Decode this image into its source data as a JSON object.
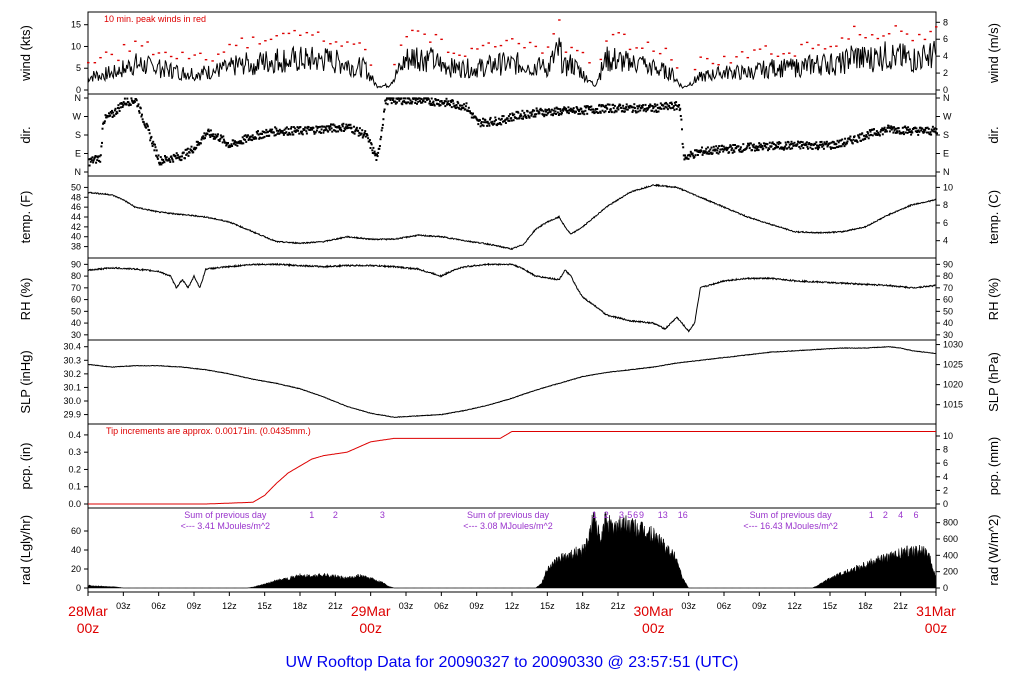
{
  "title": "UW Rooftop Data for 20090327  to  20090330 @ 23:57:51  (UTC)",
  "colors": {
    "axis": "#000000",
    "peak": "#dd0000",
    "precip": "#dd0000",
    "annot": "#9933cc",
    "date": "#dd0000",
    "title": "#0000ee"
  },
  "chart_data": {
    "type": "line",
    "x_unit": "hours since 28Mar 00z",
    "x_range": [
      0,
      72
    ],
    "x_ticks": [
      {
        "h": 0,
        "label": "28Mar",
        "sub": "00z",
        "major": true
      },
      {
        "h": 3,
        "label": "03z"
      },
      {
        "h": 6,
        "label": "06z"
      },
      {
        "h": 9,
        "label": "09z"
      },
      {
        "h": 12,
        "label": "12z"
      },
      {
        "h": 15,
        "label": "15z"
      },
      {
        "h": 18,
        "label": "18z"
      },
      {
        "h": 21,
        "label": "21z"
      },
      {
        "h": 24,
        "label": "29Mar",
        "sub": "00z",
        "major": true
      },
      {
        "h": 27,
        "label": "03z"
      },
      {
        "h": 30,
        "label": "06z"
      },
      {
        "h": 33,
        "label": "09z"
      },
      {
        "h": 36,
        "label": "12z"
      },
      {
        "h": 39,
        "label": "15z"
      },
      {
        "h": 42,
        "label": "18z"
      },
      {
        "h": 45,
        "label": "21z"
      },
      {
        "h": 48,
        "label": "30Mar",
        "sub": "00z",
        "major": true
      },
      {
        "h": 51,
        "label": "03z"
      },
      {
        "h": 54,
        "label": "06z"
      },
      {
        "h": 57,
        "label": "09z"
      },
      {
        "h": 60,
        "label": "12z"
      },
      {
        "h": 63,
        "label": "15z"
      },
      {
        "h": 66,
        "label": "18z"
      },
      {
        "h": 69,
        "label": "21z"
      },
      {
        "h": 72,
        "label": "31Mar",
        "sub": "00z",
        "major": true
      }
    ],
    "panels": [
      {
        "id": "wind",
        "kind": "wind",
        "ylabel": "wind (kts)",
        "ylabel_right": "wind (m/s)",
        "ylim": [
          0,
          17
        ],
        "left_ticks": [
          0,
          5,
          10,
          15
        ],
        "right_ticks": [
          0,
          2,
          4,
          6,
          8
        ],
        "right_factor": 0.5144,
        "annotation": "10 min. peak winds in red",
        "x": [
          0,
          2,
          2.5,
          3,
          4,
          6,
          8,
          10,
          12,
          13,
          14,
          16,
          18,
          20,
          22,
          23.5,
          24.5,
          25.5,
          27,
          28,
          29,
          31,
          33,
          35,
          37,
          39,
          40,
          40.5,
          41,
          42,
          43,
          44,
          45,
          46,
          47,
          48,
          49.5,
          50.5,
          52,
          54,
          56,
          58,
          60,
          62,
          63,
          64,
          65,
          66,
          68,
          70,
          72
        ],
        "y": [
          3,
          4,
          4,
          5,
          6,
          5,
          4,
          4,
          5,
          6,
          6,
          7,
          7,
          7,
          6,
          5,
          1,
          1,
          7,
          8,
          7,
          5,
          5,
          6,
          6,
          5,
          9,
          5,
          6,
          4,
          1,
          7,
          7,
          6,
          6,
          5,
          4,
          0.5,
          3,
          4,
          4,
          5,
          5,
          6,
          6,
          6,
          8,
          7,
          8,
          7,
          8
        ]
      },
      {
        "id": "dir",
        "kind": "dir",
        "ylabel": "dir.",
        "ylabel_right": "dir.",
        "ylim": [
          0,
          360
        ],
        "tick_labels": [
          {
            "v": 0,
            "t": "N"
          },
          {
            "v": 90,
            "t": "E"
          },
          {
            "v": 180,
            "t": "S"
          },
          {
            "v": 270,
            "t": "W"
          },
          {
            "v": 360,
            "t": "N"
          }
        ],
        "x": [
          0,
          1,
          1.2,
          2,
          3,
          4,
          6,
          8,
          9,
          10,
          11,
          12,
          14,
          16,
          18,
          20,
          22,
          23.5,
          24.5,
          25.2,
          25.8,
          26,
          28,
          30,
          31,
          32,
          33,
          35,
          36,
          38,
          40,
          42,
          44,
          46,
          48,
          49.5,
          50.2,
          50.5,
          52,
          54,
          56,
          58,
          60,
          62,
          63,
          64,
          66,
          68,
          70,
          72
        ],
        "y": [
          50,
          70,
          250,
          280,
          340,
          350,
          55,
          80,
          120,
          190,
          170,
          130,
          175,
          200,
          200,
          210,
          220,
          180,
          60,
          350,
          350,
          350,
          350,
          340,
          330,
          320,
          240,
          250,
          270,
          290,
          295,
          300,
          310,
          310,
          310,
          320,
          320,
          70,
          100,
          110,
          120,
          125,
          130,
          130,
          130,
          140,
          180,
          210,
          200,
          200
        ]
      },
      {
        "id": "temp",
        "kind": "line",
        "ylabel": "temp. (F)",
        "ylabel_right": "temp. (C)",
        "ylim": [
          36.5,
          51.5
        ],
        "left_ticks": [
          38,
          40,
          42,
          44,
          46,
          48,
          50
        ],
        "right_ticks": [
          4,
          6,
          8,
          10
        ],
        "right_conv": "f_to_c",
        "x": [
          0,
          2,
          3,
          4,
          6,
          8,
          10,
          12,
          14,
          16,
          18,
          20,
          22,
          24,
          26,
          28,
          30,
          32,
          34,
          36,
          37,
          38,
          39,
          40,
          40.5,
          41,
          42,
          44,
          46,
          48,
          50,
          52,
          54,
          56,
          58,
          60,
          62,
          64,
          66,
          68,
          70,
          72
        ],
        "y": [
          49,
          48.5,
          47.5,
          46,
          45,
          44.5,
          44,
          43,
          41,
          39,
          38.7,
          39,
          40,
          39.5,
          39.5,
          40.3,
          40,
          39.2,
          38.5,
          37.5,
          38.5,
          41.5,
          43,
          44,
          42,
          40.5,
          42,
          46,
          49,
          50.5,
          50,
          48,
          46,
          44,
          42.5,
          41,
          40.8,
          41,
          42,
          44.5,
          46.5,
          47.5
        ]
      },
      {
        "id": "rh",
        "kind": "line",
        "ylabel": "RH (%)",
        "ylabel_right": "RH (%)",
        "ylim": [
          29,
          92
        ],
        "left_ticks": [
          30,
          40,
          50,
          60,
          70,
          80,
          90
        ],
        "right_ticks": [
          30,
          40,
          50,
          60,
          70,
          80,
          90
        ],
        "x": [
          0,
          2,
          4,
          6,
          7,
          7.5,
          8,
          8.5,
          9,
          9.5,
          10,
          12,
          14,
          16,
          18,
          20,
          22,
          24,
          26,
          28,
          30,
          31,
          32,
          34,
          36,
          37,
          38,
          40,
          40.5,
          41,
          41.5,
          42,
          43,
          44,
          46,
          48,
          49,
          50,
          51,
          51.5,
          52,
          54,
          56,
          58,
          60,
          62,
          64,
          66,
          68,
          70,
          72
        ],
        "y": [
          85,
          87,
          86,
          84,
          80,
          70,
          77,
          70,
          80,
          70,
          86,
          88,
          90,
          90,
          89,
          88,
          89,
          89,
          88,
          86,
          80,
          85,
          88,
          90,
          90,
          86,
          80,
          77,
          85,
          80,
          70,
          62,
          55,
          47,
          42,
          40,
          35,
          45,
          33,
          40,
          70,
          76,
          78,
          78,
          76,
          75,
          74,
          73,
          72,
          70,
          72
        ]
      },
      {
        "id": "slp",
        "kind": "line",
        "ylabel": "SLP (inHg)",
        "ylabel_right": "SLP (hPa)",
        "ylim": [
          29.86,
          30.42
        ],
        "left_ticks": [
          29.9,
          30.0,
          30.1,
          30.2,
          30.3,
          30.4
        ],
        "right_ticks": [
          1015,
          1020,
          1025,
          1030
        ],
        "right_conv": "inhg_to_hpa",
        "x": [
          0,
          2,
          4,
          6,
          8,
          10,
          12,
          14,
          16,
          18,
          20,
          22,
          24,
          26,
          28,
          30,
          32,
          34,
          36,
          38,
          40,
          42,
          44,
          46,
          48,
          50,
          52,
          54,
          56,
          58,
          60,
          62,
          64,
          66,
          68,
          69,
          70,
          72
        ],
        "y": [
          30.27,
          30.25,
          30.26,
          30.26,
          30.25,
          30.23,
          30.2,
          30.16,
          30.13,
          30.09,
          30.03,
          29.96,
          29.91,
          29.88,
          29.89,
          29.9,
          29.93,
          29.97,
          30.02,
          30.08,
          30.13,
          30.18,
          30.21,
          30.23,
          30.25,
          30.28,
          30.3,
          30.32,
          30.34,
          30.36,
          30.37,
          30.38,
          30.39,
          30.39,
          30.4,
          30.39,
          30.37,
          30.35
        ]
      },
      {
        "id": "pcp",
        "kind": "step",
        "ylabel": "pcp. (in)",
        "ylabel_right": "pcp. (mm)",
        "ylim": [
          0,
          0.44
        ],
        "left_ticks": [
          0.0,
          0.1,
          0.2,
          0.3,
          0.4
        ],
        "right_ticks": [
          0,
          2,
          4,
          6,
          8,
          10
        ],
        "right_factor": 25.4,
        "annotation": "Tip increments are approx. 0.00171in. (0.0435mm.)",
        "x": [
          0,
          10,
          12,
          14,
          15,
          16,
          17,
          18,
          19,
          20,
          21,
          22,
          23,
          24,
          25,
          26,
          27,
          28,
          30,
          32,
          34,
          35,
          35.5,
          36,
          36.5,
          72
        ],
        "y": [
          0,
          0,
          0.005,
          0.01,
          0.05,
          0.12,
          0.18,
          0.22,
          0.26,
          0.28,
          0.29,
          0.3,
          0.33,
          0.36,
          0.37,
          0.38,
          0.38,
          0.38,
          0.38,
          0.38,
          0.38,
          0.38,
          0.4,
          0.42,
          0.42,
          0.42
        ]
      },
      {
        "id": "rad",
        "kind": "area",
        "ylabel": "rad (Lgly/hr)",
        "ylabel_right": "rad (W/m^2)",
        "ylim": [
          0,
          80
        ],
        "left_ticks": [
          0,
          20,
          40,
          60
        ],
        "right_ticks": [
          0,
          200,
          400,
          600,
          800
        ],
        "right_factor": 11.63,
        "x": [
          0,
          0.5,
          1,
          2.5,
          3,
          13.5,
          14,
          15,
          16,
          17,
          18,
          19,
          20,
          21,
          22,
          23,
          24,
          25,
          25.5,
          26,
          38,
          38.5,
          39,
          40,
          41,
          42,
          42.5,
          43,
          43.5,
          44,
          44.5,
          45,
          46,
          47,
          48,
          49,
          50,
          50.5,
          51,
          61.5,
          62,
          63,
          64,
          65,
          66,
          67,
          68,
          69,
          70,
          71,
          71.5,
          72
        ],
        "y": [
          3,
          2,
          2,
          1,
          0,
          0,
          1,
          4,
          8,
          10,
          13,
          12,
          14,
          12,
          10,
          13,
          10,
          6,
          2,
          0,
          0,
          5,
          20,
          30,
          35,
          40,
          50,
          80,
          45,
          75,
          60,
          68,
          65,
          60,
          55,
          45,
          30,
          10,
          0,
          0,
          3,
          10,
          15,
          20,
          25,
          30,
          32,
          36,
          40,
          38,
          30,
          10
        ]
      }
    ],
    "rad_annotations": [
      {
        "text": "Sum of previous day",
        "value": "<--- 3.41 MJoules/m^2",
        "h": 12
      },
      {
        "text": "Sum of previous day",
        "value": "<--- 3.08 MJoules/m^2",
        "h": 36
      },
      {
        "text": "Sum of previous day",
        "value": "<--- 16.43 MJoules/m^2",
        "h": 60
      }
    ],
    "rad_tip_marks": [
      {
        "h": 19,
        "t": "1"
      },
      {
        "h": 21,
        "t": "2"
      },
      {
        "h": 25,
        "t": "3"
      },
      {
        "h": 43,
        "t": "1"
      },
      {
        "h": 44,
        "t": "2"
      },
      {
        "h": 45.3,
        "t": "3"
      },
      {
        "h": 46,
        "t": "5"
      },
      {
        "h": 46.5,
        "t": "6"
      },
      {
        "h": 47,
        "t": "9"
      },
      {
        "h": 48.8,
        "t": "13"
      },
      {
        "h": 50.5,
        "t": "16"
      },
      {
        "h": 66.5,
        "t": "1"
      },
      {
        "h": 67.7,
        "t": "2"
      },
      {
        "h": 69,
        "t": "4"
      },
      {
        "h": 70.3,
        "t": "6"
      }
    ]
  }
}
